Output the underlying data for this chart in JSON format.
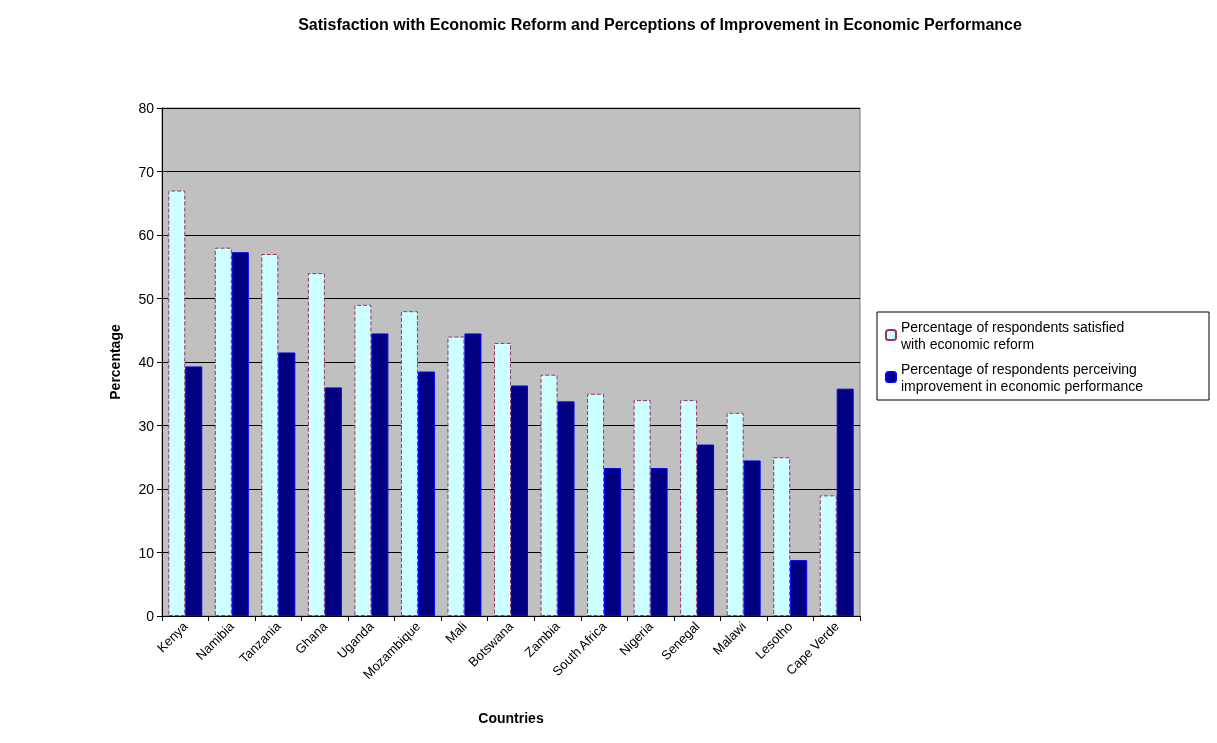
{
  "chart_data": {
    "type": "bar",
    "title": "Satisfaction with Economic Reform and Perceptions of Improvement in Economic Performance",
    "xlabel": "Countries",
    "ylabel": "Percentage",
    "categories": [
      "Kenya",
      "Namibia",
      "Tanzania",
      "Ghana",
      "Uganda",
      "Mozambique",
      "Mali",
      "Botswana",
      "Zambia",
      "South Africa",
      "Nigeria",
      "Senegal",
      "Malawi",
      "Lesotho",
      "Cape Verde"
    ],
    "series": [
      {
        "name": "Percentage of respondents satisfied with economic reform",
        "color": "#ccffff",
        "line_style": "dashed",
        "values": [
          67,
          58,
          57,
          54,
          49,
          48,
          44,
          43,
          38,
          35,
          34,
          34,
          32,
          25,
          19
        ]
      },
      {
        "name": "Percentage of respondents perceiving improvement in economic performance",
        "color": "#000080",
        "values": [
          39.3,
          57.3,
          41.5,
          36,
          44.5,
          38.5,
          44.5,
          36.3,
          33.8,
          23.3,
          23.3,
          27,
          24.5,
          8.8,
          35.8
        ]
      }
    ],
    "ylim": [
      0,
      80
    ],
    "yticks": [
      0,
      10,
      20,
      30,
      40,
      50,
      60,
      70,
      80
    ],
    "grid": "y",
    "legend": "right"
  }
}
